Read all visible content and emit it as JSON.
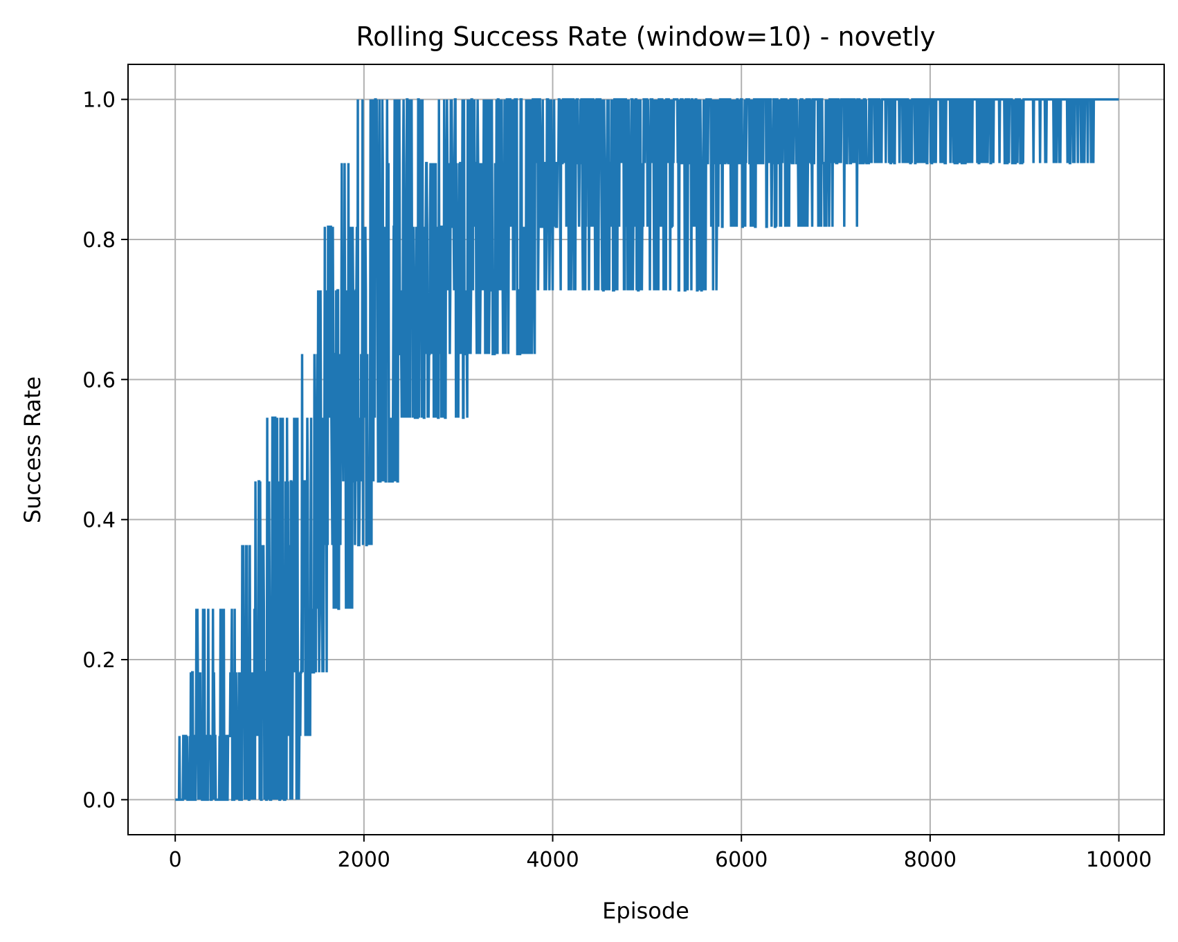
{
  "chart_data": {
    "type": "line",
    "title": "Rolling Success Rate (window=10) - novetly",
    "xlabel": "Episode",
    "ylabel": "Success Rate",
    "xlim": [
      -500,
      10480
    ],
    "ylim": [
      -0.05,
      1.05
    ],
    "xticks": [
      0,
      2000,
      4000,
      6000,
      8000,
      10000
    ],
    "xtick_labels": [
      "0",
      "2000",
      "4000",
      "6000",
      "8000",
      "10000"
    ],
    "yticks": [
      0.0,
      0.2,
      0.4,
      0.6,
      0.8,
      1.0
    ],
    "ytick_labels": [
      "0.0",
      "0.2",
      "0.4",
      "0.6",
      "0.8",
      "1.0"
    ],
    "grid": true,
    "series": [
      {
        "name": "",
        "color": "#1f77b4",
        "x": [
          0,
          250,
          500,
          750,
          1000,
          1250,
          1500,
          1750,
          2000,
          2250,
          2500,
          2750,
          3000,
          3250,
          3500,
          3750,
          4000,
          4500,
          5000,
          5500,
          6000,
          6500,
          7000,
          7500,
          8000,
          8500,
          9000,
          9500,
          10000
        ],
        "values": [
          0.0,
          0.05,
          0.06,
          0.08,
          0.18,
          0.27,
          0.4,
          0.5,
          0.6,
          0.68,
          0.72,
          0.75,
          0.78,
          0.82,
          0.86,
          0.88,
          0.9,
          0.92,
          0.94,
          0.95,
          0.96,
          0.96,
          0.97,
          0.98,
          0.98,
          0.98,
          0.99,
          0.99,
          1.0
        ],
        "band_low": [
          0.0,
          0.0,
          0.0,
          0.0,
          0.0,
          0.0,
          0.18,
          0.27,
          0.36,
          0.45,
          0.55,
          0.55,
          0.55,
          0.64,
          0.64,
          0.64,
          0.73,
          0.73,
          0.73,
          0.73,
          0.82,
          0.82,
          0.82,
          0.91,
          0.91,
          0.91,
          0.91,
          0.91,
          1.0
        ],
        "band_high": [
          0.0,
          0.27,
          0.27,
          0.36,
          0.55,
          0.55,
          0.73,
          0.91,
          1.0,
          1.0,
          1.0,
          1.0,
          1.0,
          1.0,
          1.0,
          1.0,
          1.0,
          1.0,
          1.0,
          1.0,
          1.0,
          1.0,
          1.0,
          1.0,
          1.0,
          1.0,
          1.0,
          1.0,
          1.0
        ]
      }
    ]
  }
}
